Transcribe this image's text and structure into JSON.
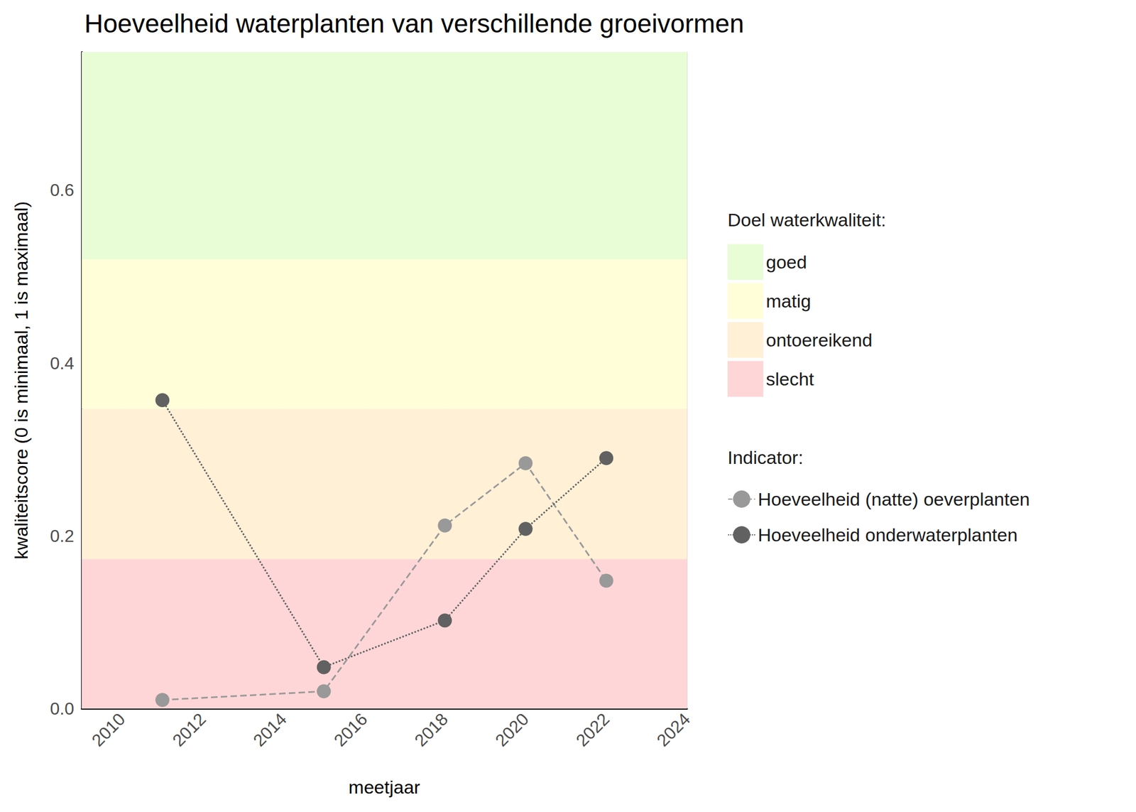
{
  "chart_data": {
    "type": "line",
    "title": "Hoeveelheid waterplanten van verschillende groeivormen",
    "x_label": "meetjaar",
    "y_label": "kwaliteitscore (0 is minimaal, 1 is maximaal)",
    "xlim": [
      2009,
      2024
    ],
    "xticks": [
      2010,
      2012,
      2014,
      2016,
      2018,
      2020,
      2022,
      2024
    ],
    "ylim": [
      0,
      0.76
    ],
    "yticks": [
      {
        "value": 0,
        "label": "0.0"
      },
      0.2,
      0.4,
      0.6
    ],
    "grid": true,
    "legend": "right",
    "band_title": "Doel waterkwaliteit:",
    "legend_title": "Indicator:",
    "bands": [
      {
        "name": "goed",
        "color": "#e8fdd6",
        "from": 0.52,
        "to": 0.76
      },
      {
        "name": "matig",
        "color": "#fffed8",
        "from": 0.347,
        "to": 0.52
      },
      {
        "name": "ontoereikend",
        "color": "#fff0d6",
        "from": 0.173,
        "to": 0.347
      },
      {
        "name": "slecht",
        "color": "#ffd6d7",
        "from": 0,
        "to": 0.173
      }
    ],
    "x": [
      2011,
      2015,
      2018,
      2020,
      2022
    ],
    "series": [
      {
        "name": "Hoeveelheid (natte) oeverplanten",
        "color": "#999999",
        "line_style": "dashed",
        "marker": "circle",
        "values": [
          0.01,
          0.02,
          0.212,
          0.284,
          0.148
        ]
      },
      {
        "name": "Hoeveelheid onderwaterplanten",
        "color": "#616161",
        "line_style": "dotted",
        "marker": "circle",
        "values": [
          0.357,
          0.048,
          0.102,
          0.208,
          0.29
        ]
      }
    ]
  }
}
